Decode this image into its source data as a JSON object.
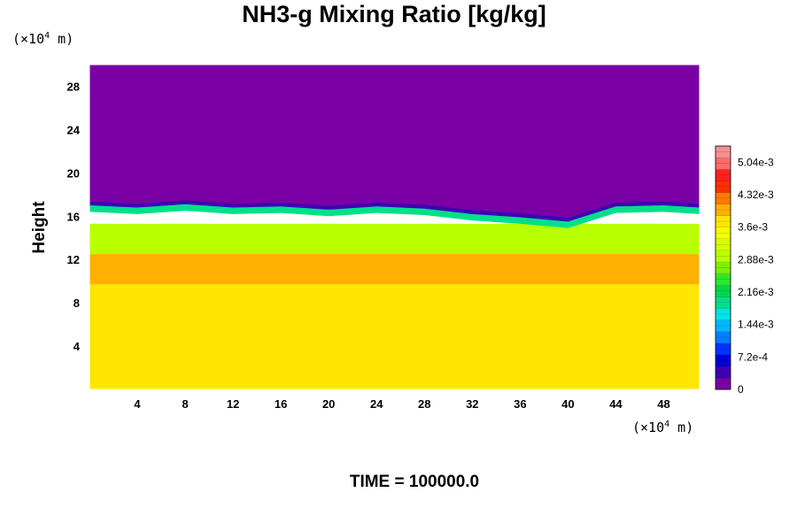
{
  "chart_data": {
    "type": "heatmap",
    "title": "NH3-g Mixing Ratio [kg/kg]",
    "ylabel": "Height",
    "y_unit_prefix": "(×10",
    "y_unit_exp": "4",
    "y_unit_suffix": " m)",
    "x_unit_prefix": "(×10",
    "x_unit_exp": "4",
    "x_unit_suffix": " m)",
    "xlim": [
      0,
      51
    ],
    "ylim": [
      0,
      30
    ],
    "xticks": [
      4,
      8,
      12,
      16,
      20,
      24,
      28,
      32,
      36,
      40,
      44,
      48
    ],
    "yticks": [
      4,
      8,
      12,
      16,
      20,
      24,
      28
    ],
    "fields": {
      "lower_layer": {
        "y_range": [
          0,
          9.7
        ],
        "value": 0.0038
      },
      "yellow_band": {
        "y_range": [
          9.7,
          12.5
        ],
        "value": 0.0041
      },
      "green_layer": {
        "y_range": [
          12.5,
          15.3
        ],
        "value": 0.003
      },
      "cyan_band": {
        "y_range": [
          15.3,
          16.4
        ],
        "value": 0.0018
      },
      "blue_edge": {
        "y_range": [
          16.4,
          17.0
        ],
        "value": 0.0005
      },
      "upper_layer": {
        "y_range": [
          17.0,
          30
        ],
        "value": 0
      }
    },
    "interface_height": [
      {
        "x": 0,
        "y": 17.0
      },
      {
        "x": 4,
        "y": 16.8
      },
      {
        "x": 8,
        "y": 17.1
      },
      {
        "x": 12,
        "y": 16.8
      },
      {
        "x": 16,
        "y": 16.9
      },
      {
        "x": 20,
        "y": 16.6
      },
      {
        "x": 24,
        "y": 16.9
      },
      {
        "x": 28,
        "y": 16.7
      },
      {
        "x": 32,
        "y": 16.2
      },
      {
        "x": 36,
        "y": 15.9
      },
      {
        "x": 40,
        "y": 15.5
      },
      {
        "x": 44,
        "y": 16.9
      },
      {
        "x": 48,
        "y": 17.0
      },
      {
        "x": 51,
        "y": 16.8
      }
    ],
    "colorbar": {
      "min": 0,
      "max": 0.0054,
      "tick_labels": [
        "0",
        "7.2e-4",
        "1.44e-3",
        "2.16e-3",
        "2.88e-3",
        "3.6e-3",
        "4.32e-3",
        "5.04e-3"
      ],
      "tick_values": [
        0,
        0.00072,
        0.00144,
        0.00216,
        0.00288,
        0.0036,
        0.00432,
        0.00504
      ],
      "colors": [
        "#7a00a6",
        "#3e00b4",
        "#0000d8",
        "#0033ff",
        "#0080ff",
        "#00b8ff",
        "#00e6e6",
        "#00e08a",
        "#00d84a",
        "#2de82d",
        "#7cf000",
        "#b8ff00",
        "#d6ff00",
        "#f4ff00",
        "#ffe600",
        "#ffb000",
        "#ff7a00",
        "#ff3000",
        "#ff2020",
        "#ff6a6a",
        "#f59090"
      ]
    },
    "time_label": "TIME = 100000.0"
  }
}
